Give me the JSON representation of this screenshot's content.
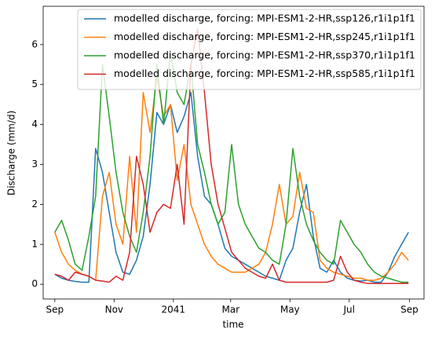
{
  "chart_data": {
    "type": "line",
    "x_label": "time",
    "y_label": "Discharge (mm/d)",
    "x": [
      0,
      7,
      14,
      21,
      28,
      35,
      42,
      49,
      56,
      63,
      70,
      77,
      84,
      91,
      98,
      105,
      112,
      119,
      126,
      133,
      140,
      147,
      154,
      161,
      168,
      175,
      182,
      189,
      196,
      203,
      210,
      217,
      224,
      231,
      238,
      245,
      252,
      259,
      266,
      273,
      280,
      287,
      294,
      301,
      308,
      315,
      322,
      329,
      336,
      343,
      350,
      357,
      364
    ],
    "xlim": [
      -12,
      380
    ],
    "xticks": [
      {
        "value": 0,
        "label": "Sep"
      },
      {
        "value": 61,
        "label": "Nov"
      },
      {
        "value": 122,
        "label": "2041"
      },
      {
        "value": 181,
        "label": "Mar"
      },
      {
        "value": 242,
        "label": "May"
      },
      {
        "value": 303,
        "label": "Jul"
      },
      {
        "value": 365,
        "label": "Sep"
      }
    ],
    "ylim": [
      -0.37,
      6.96
    ],
    "yticks": [
      0,
      1,
      2,
      3,
      4,
      5,
      6
    ],
    "legend": "upper right",
    "series": [
      {
        "name": "modelled discharge, forcing: MPI-ESM1-2-HR,ssp126,r1i1p1f1",
        "color": "#1f77b4",
        "values": [
          0.25,
          0.15,
          0.1,
          0.07,
          0.05,
          0.05,
          3.4,
          2.8,
          1.8,
          0.8,
          0.3,
          0.25,
          0.6,
          1.2,
          2.5,
          4.3,
          4.0,
          4.5,
          3.8,
          4.2,
          4.8,
          3.2,
          2.2,
          2.0,
          1.5,
          0.9,
          0.7,
          0.6,
          0.5,
          0.4,
          0.3,
          0.2,
          0.15,
          0.1,
          0.6,
          0.9,
          1.8,
          2.5,
          1.2,
          0.4,
          0.3,
          0.6,
          0.3,
          0.15,
          0.1,
          0.08,
          0.1,
          0.05,
          0.05,
          0.3,
          0.7,
          1.0,
          1.3
        ]
      },
      {
        "name": "modelled discharge, forcing: MPI-ESM1-2-HR,ssp245,r1i1p1f1",
        "color": "#ff7f0e",
        "values": [
          1.3,
          0.8,
          0.5,
          0.35,
          0.25,
          0.2,
          0.1,
          2.2,
          2.8,
          1.5,
          1.0,
          3.2,
          1.3,
          4.8,
          3.8,
          5.2,
          4.2,
          4.5,
          2.6,
          3.5,
          2.0,
          1.5,
          1.0,
          0.7,
          0.5,
          0.4,
          0.3,
          0.3,
          0.3,
          0.4,
          0.5,
          0.8,
          1.5,
          2.5,
          1.5,
          1.7,
          2.8,
          1.9,
          1.8,
          0.6,
          0.4,
          0.3,
          0.25,
          0.2,
          0.15,
          0.15,
          0.1,
          0.1,
          0.15,
          0.3,
          0.5,
          0.8,
          0.6
        ]
      },
      {
        "name": "modelled discharge, forcing: MPI-ESM1-2-HR,ssp370,r1i1p1f1",
        "color": "#2ca02c",
        "values": [
          1.3,
          1.6,
          1.1,
          0.5,
          0.35,
          1.2,
          2.2,
          5.5,
          4.2,
          2.8,
          1.8,
          1.2,
          0.8,
          1.8,
          3.2,
          5.5,
          4.0,
          5.8,
          4.8,
          4.5,
          5.5,
          3.5,
          2.8,
          2.0,
          1.5,
          1.8,
          3.5,
          2.0,
          1.5,
          1.2,
          0.9,
          0.8,
          0.6,
          0.5,
          1.5,
          3.4,
          2.2,
          1.5,
          1.1,
          0.8,
          0.6,
          0.5,
          1.6,
          1.3,
          1.0,
          0.8,
          0.5,
          0.3,
          0.2,
          0.15,
          0.1,
          0.05,
          0.05
        ]
      },
      {
        "name": "modelled discharge, forcing: MPI-ESM1-2-HR,ssp585,r1i1p1f1",
        "color": "#d62728",
        "values": [
          0.25,
          0.2,
          0.1,
          0.3,
          0.25,
          0.2,
          0.1,
          0.08,
          0.05,
          0.2,
          0.1,
          0.8,
          3.2,
          2.5,
          1.3,
          1.8,
          2.0,
          1.9,
          3.0,
          1.5,
          5.5,
          6.4,
          4.8,
          3.0,
          2.0,
          1.4,
          0.8,
          0.6,
          0.4,
          0.3,
          0.2,
          0.15,
          0.5,
          0.1,
          0.05,
          0.05,
          0.05,
          0.05,
          0.05,
          0.05,
          0.05,
          0.1,
          0.7,
          0.3,
          0.1,
          0.05,
          0.02,
          0.02,
          0.02,
          0.02,
          0.02,
          0.02,
          0.02
        ]
      }
    ]
  }
}
